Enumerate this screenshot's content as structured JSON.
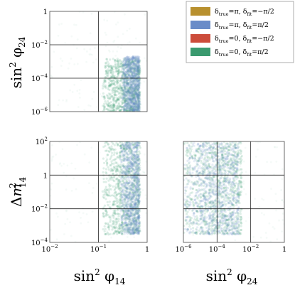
{
  "chart_data": [
    {
      "type": "scatter",
      "panel": "top-left",
      "xlabel": "",
      "ylabel": "sin² φ24",
      "xscale": "log",
      "yscale": "log",
      "xlim": [
        0.01,
        1
      ],
      "ylim": [
        1e-06,
        1
      ],
      "xticks": [],
      "yticks": [
        "10⁻⁶",
        "10⁻⁴",
        "10⁻²",
        "1"
      ],
      "yticks_exp": [
        [
          "10",
          "−6"
        ],
        [
          "10",
          "−4"
        ],
        [
          "10",
          "−2"
        ],
        [
          "1",
          ""
        ]
      ],
      "grid": true,
      "series": [
        {
          "name": "green",
          "color": "#3a9a6f",
          "region": {
            "x": [
              0.12,
              0.72
            ],
            "y": [
              1e-06,
              0.0015
            ]
          }
        },
        {
          "name": "blue",
          "color": "#6a8cc8",
          "region": {
            "x": [
              0.3,
              0.7
            ],
            "y": [
              1e-06,
              0.002
            ]
          }
        }
      ]
    },
    {
      "type": "scatter",
      "panel": "bottom-left",
      "xlabel": "sin² φ14",
      "ylabel": "Δm²14",
      "xscale": "log",
      "yscale": "log",
      "xlim": [
        0.01,
        1
      ],
      "ylim": [
        0.0001,
        100
      ],
      "xticks": [
        "10⁻²",
        "10⁻¹",
        "1"
      ],
      "xticks_exp": [
        [
          "10",
          "−2"
        ],
        [
          "10",
          "−1"
        ],
        [
          "1",
          ""
        ]
      ],
      "yticks": [
        "10⁻⁴",
        "10⁻²",
        "1",
        "10²"
      ],
      "yticks_exp": [
        [
          "10",
          "−4"
        ],
        [
          "10",
          "−2"
        ],
        [
          "1",
          ""
        ],
        [
          "10",
          "2"
        ]
      ],
      "grid": true,
      "series": [
        {
          "name": "green",
          "color": "#3a9a6f",
          "region": {
            "x": [
              0.12,
              0.72
            ],
            "y": [
              0.0003,
              100
            ]
          }
        },
        {
          "name": "blue",
          "color": "#6a8cc8",
          "region": {
            "x": [
              0.28,
              0.7
            ],
            "y": [
              0.0003,
              100
            ]
          }
        }
      ]
    },
    {
      "type": "scatter",
      "panel": "bottom-right",
      "xlabel": "sin² φ24",
      "ylabel": "",
      "xscale": "log",
      "yscale": "log",
      "xlim": [
        1e-06,
        1
      ],
      "ylim": [
        0.0001,
        100
      ],
      "xticks": [
        "10⁻⁶",
        "10⁻⁴",
        "10⁻²",
        "1"
      ],
      "xticks_exp": [
        [
          "10",
          "−6"
        ],
        [
          "10",
          "−4"
        ],
        [
          "10",
          "−2"
        ],
        [
          "1",
          ""
        ]
      ],
      "yticks": [],
      "grid": true,
      "series": [
        {
          "name": "green",
          "color": "#3a9a6f",
          "region": {
            "x": [
              1e-06,
              0.003
            ],
            "y": [
              0.0003,
              100
            ]
          }
        },
        {
          "name": "blue",
          "color": "#6a8cc8",
          "region": {
            "x": [
              1e-06,
              0.002
            ],
            "y": [
              0.0003,
              100
            ]
          }
        }
      ]
    }
  ],
  "legend": {
    "placement": "top-right",
    "entries": [
      {
        "color": "#b8902e",
        "base": "δ",
        "sub1": "true",
        "eq1": "=π, ",
        "base2": "δ",
        "sub2": "fit",
        "eq2": "=−π/2"
      },
      {
        "color": "#6a8cc8",
        "base": "δ",
        "sub1": "true",
        "eq1": "=π, ",
        "base2": "δ",
        "sub2": "fit",
        "eq2": "=π/2"
      },
      {
        "color": "#cc4c3b",
        "base": "δ",
        "sub1": "true",
        "eq1": "=0, ",
        "base2": "δ",
        "sub2": "fit",
        "eq2": "=−π/2"
      },
      {
        "color": "#3a9a6f",
        "base": "δ",
        "sub1": "true",
        "eq1": "=0, ",
        "base2": "δ",
        "sub2": "fit",
        "eq2": "=π/2"
      }
    ]
  }
}
